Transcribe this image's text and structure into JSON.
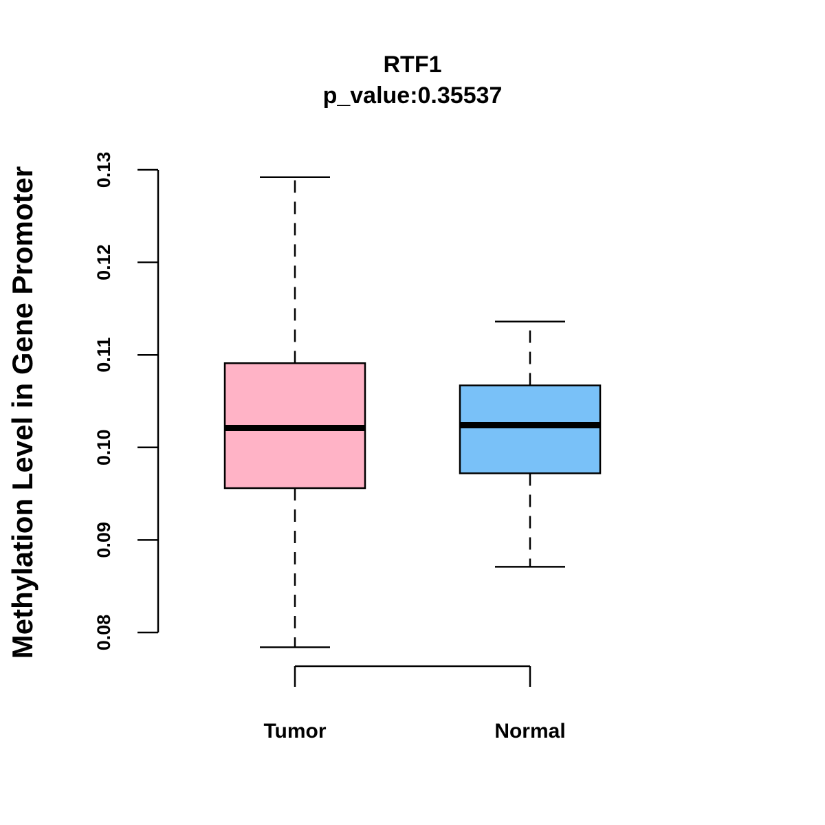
{
  "chart_data": {
    "type": "box",
    "title": "RTF1",
    "subtitle": "p_value:0.35537",
    "xlabel": "",
    "ylabel": "Methylation Level in Gene Promoter",
    "ylim": [
      0.08,
      0.13
    ],
    "yticks": [
      {
        "value": 0.08,
        "label": "0.08"
      },
      {
        "value": 0.09,
        "label": "0.09"
      },
      {
        "value": 0.1,
        "label": "0.10"
      },
      {
        "value": 0.11,
        "label": "0.11"
      },
      {
        "value": 0.12,
        "label": "0.12"
      },
      {
        "value": 0.13,
        "label": "0.13"
      }
    ],
    "categories": [
      "Tumor",
      "Normal"
    ],
    "boxes": [
      {
        "name": "Tumor",
        "color": "#FFB3C6",
        "whisker_low": 0.0784,
        "q1": 0.0956,
        "median": 0.1021,
        "q3": 0.1091,
        "whisker_high": 0.1292
      },
      {
        "name": "Normal",
        "color": "#79C1F8",
        "whisker_low": 0.0871,
        "q1": 0.0972,
        "median": 0.1024,
        "q3": 0.1067,
        "whisker_high": 0.1136
      }
    ],
    "grid": false,
    "legend": "none"
  }
}
